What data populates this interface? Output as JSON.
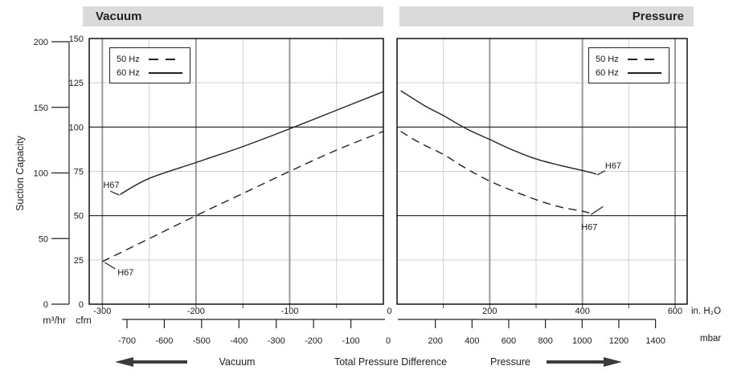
{
  "headers": {
    "left": "Vacuum",
    "right": "Pressure"
  },
  "y_axis": {
    "title": "Suction Capacity",
    "m3hr_unit": "m³/hr",
    "cfm_unit": "cfm",
    "m3hr_ticks": [
      0,
      50,
      100,
      150,
      200
    ],
    "m3hr_max": 200,
    "cfm_ticks": [
      0,
      25,
      50,
      75,
      100,
      125,
      150
    ],
    "cfm_max": 150
  },
  "x_axis": {
    "inh2o_unit": "in. H₂O",
    "mbar_unit": "mbar",
    "shared_zero": "0",
    "label": "Total Pressure Difference"
  },
  "legend": {
    "items": [
      {
        "label": "50 Hz",
        "style": "dashed"
      },
      {
        "label": "60 Hz",
        "style": "solid"
      }
    ]
  },
  "footer": {
    "vacuum_label": "Vacuum",
    "center_label": "Total Pressure Difference",
    "pressure_label": "Pressure"
  },
  "colors": {
    "header_bg": "#dadada",
    "curve": "#222222",
    "grid_minor": "#cfcfcf",
    "grid_major_vertical": "#9a9a9a",
    "grid_major_horizontal": "#1a1a1a",
    "border": "#000000",
    "arrow": "#3c3c3c"
  },
  "chart_data": [
    {
      "type": "line",
      "title": "Vacuum",
      "xlabel": "in. H₂O",
      "xlabel_secondary": "mbar",
      "ylabel": "Suction Capacity (cfm)",
      "xlim": [
        -314,
        0
      ],
      "ylim": [
        0,
        150
      ],
      "grid": true,
      "x_major_ticks": [
        -300,
        -200,
        -100
      ],
      "x_minor_gridlines": [
        -250,
        -150,
        -50
      ],
      "y_major_gridlines": [
        50,
        100
      ],
      "y_minor_gridlines": [
        25,
        75,
        125
      ],
      "mbar_ticks": [
        -700,
        -600,
        -500,
        -400,
        -300,
        -200,
        -100
      ],
      "series": [
        {
          "name": "50 Hz",
          "style": "dashed",
          "curve_label": "H67",
          "label_placement": "below-start",
          "points": [
            [
              -300,
              24
            ],
            [
              -250,
              37
            ],
            [
              -200,
              50
            ],
            [
              -150,
              62.5
            ],
            [
              -100,
              75
            ],
            [
              -50,
              87
            ],
            [
              0,
              97.5
            ]
          ]
        },
        {
          "name": "60 Hz",
          "style": "solid",
          "curve_label": "H67",
          "label_placement": "above-start",
          "points": [
            [
              -281,
              62
            ],
            [
              -250,
              71
            ],
            [
              -200,
              80
            ],
            [
              -150,
              89
            ],
            [
              -100,
              99
            ],
            [
              -50,
              109.5
            ],
            [
              0,
              120
            ]
          ]
        }
      ]
    },
    {
      "type": "line",
      "title": "Pressure",
      "xlabel": "in. H₂O",
      "xlabel_secondary": "mbar",
      "ylabel": "Suction Capacity (cfm)",
      "xlim": [
        0,
        626
      ],
      "ylim": [
        0,
        150
      ],
      "grid": true,
      "x_major_ticks": [
        200,
        400,
        600
      ],
      "x_minor_gridlines": [
        100,
        300,
        500
      ],
      "y_major_gridlines": [
        50,
        100
      ],
      "y_minor_gridlines": [
        25,
        75,
        125
      ],
      "mbar_ticks": [
        200,
        400,
        600,
        800,
        1000,
        1200,
        1400
      ],
      "series": [
        {
          "name": "50 Hz",
          "style": "dashed",
          "curve_label": "H67",
          "label_placement": "below-end",
          "points": [
            [
              8,
              97.5
            ],
            [
              50,
              91
            ],
            [
              100,
              84.5
            ],
            [
              150,
              76.5
            ],
            [
              200,
              69.5
            ],
            [
              250,
              64
            ],
            [
              300,
              59
            ],
            [
              350,
              55
            ],
            [
              400,
              52.5
            ],
            [
              415,
              51.5
            ]
          ]
        },
        {
          "name": "60 Hz",
          "style": "solid",
          "curve_label": "H67",
          "label_placement": "right-end",
          "points": [
            [
              8,
              120.5
            ],
            [
              60,
              112
            ],
            [
              100,
              106.5
            ],
            [
              150,
              99
            ],
            [
              200,
              93
            ],
            [
              250,
              87
            ],
            [
              300,
              82
            ],
            [
              350,
              78.5
            ],
            [
              400,
              75.5
            ],
            [
              430,
              73.5
            ]
          ]
        }
      ]
    }
  ]
}
